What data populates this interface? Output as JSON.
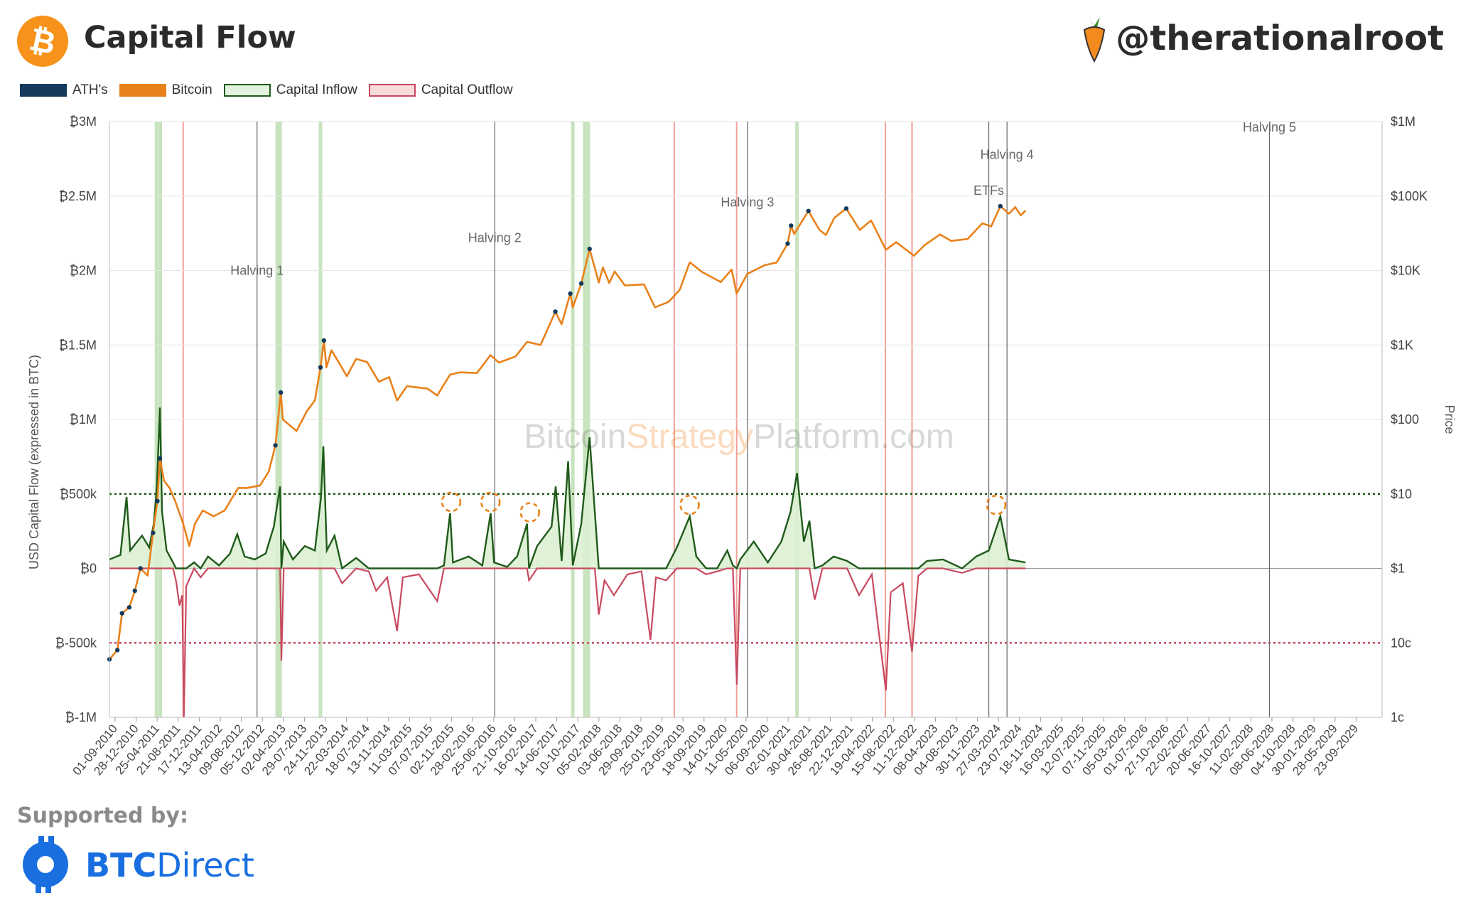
{
  "header": {
    "title": "Capital Flow",
    "handle": "@therationalroot",
    "logo_icon": "bitcoin-icon",
    "handle_icon": "carrot-icon"
  },
  "legend": [
    {
      "label": "ATH's",
      "color": "#143a5c",
      "style": "solid"
    },
    {
      "label": "Bitcoin",
      "color": "#e9811a",
      "style": "solid"
    },
    {
      "label": "Capital Inflow",
      "color": "#1f5a1a",
      "fill": "#e3f2dc",
      "style": "outline"
    },
    {
      "label": "Capital Outflow",
      "color": "#c84a60",
      "fill": "#fadbdc",
      "style": "outline"
    }
  ],
  "watermark": {
    "part1": "Bitcoin",
    "part2": "Strategy",
    "part3": "Platform.com"
  },
  "footer": {
    "supported_label": "Supported by:",
    "sponsor_bold": "BTC",
    "sponsor_rest": "Direct",
    "sponsor_icon": "btcdirect-logo-icon"
  },
  "chart_data": {
    "type": "line",
    "ylabel_left": "USD Capital Flow (expressed in BTC)",
    "ylabel_right": "Price",
    "y_left_ticks": [
      "₿3M",
      "₿2.5M",
      "₿2M",
      "₿1.5M",
      "₿1M",
      "₿500k",
      "₿0",
      "₿-500k",
      "₿-1M"
    ],
    "y_left_range": [
      -1000000,
      3000000
    ],
    "y_right_ticks": [
      "$1M",
      "$100K",
      "$10K",
      "$1K",
      "$100",
      "$10",
      "$1",
      "10c",
      "1c"
    ],
    "y_right_range_log": [
      0.01,
      1000000
    ],
    "x_range": [
      "2010-09-01",
      "2029-12-31"
    ],
    "x_ticks": [
      "01-09-2010",
      "28-12-2010",
      "25-04-2011",
      "21-08-2011",
      "17-12-2011",
      "13-04-2012",
      "09-08-2012",
      "05-12-2012",
      "02-04-2013",
      "29-07-2013",
      "24-11-2013",
      "22-03-2014",
      "18-07-2014",
      "13-11-2014",
      "11-03-2015",
      "07-07-2015",
      "02-11-2015",
      "28-02-2016",
      "25-06-2016",
      "21-10-2016",
      "16-02-2017",
      "14-06-2017",
      "10-10-2017",
      "05-02-2018",
      "03-06-2018",
      "29-09-2018",
      "25-01-2019",
      "23-05-2019",
      "18-09-2019",
      "14-01-2020",
      "11-05-2020",
      "06-09-2020",
      "02-01-2021",
      "30-04-2021",
      "26-08-2021",
      "22-12-2021",
      "19-04-2022",
      "15-08-2022",
      "11-12-2022",
      "08-04-2023",
      "04-08-2023",
      "30-11-2023",
      "27-03-2024",
      "23-07-2024",
      "18-11-2024",
      "16-03-2025",
      "12-07-2025",
      "07-11-2025",
      "05-03-2026",
      "01-07-2026",
      "27-10-2026",
      "22-02-2027",
      "20-06-2027",
      "16-10-2027",
      "11-02-2028",
      "08-06-2028",
      "04-10-2028",
      "30-01-2029",
      "28-05-2029",
      "23-09-2029"
    ],
    "reference_lines": [
      {
        "value": 500000,
        "color": "#1f5a1a",
        "style": "dotted"
      },
      {
        "value": -500000,
        "color": "#c84a60",
        "style": "dotted"
      }
    ],
    "events": [
      {
        "label": "Halving 1",
        "date": "2012-11-28"
      },
      {
        "label": "Halving 2",
        "date": "2016-07-09"
      },
      {
        "label": "Halving 3",
        "date": "2020-05-11"
      },
      {
        "label": "ETFs",
        "date": "2024-01-10"
      },
      {
        "label": "Halving 4",
        "date": "2024-04-20"
      },
      {
        "label": "Halving 5",
        "date": "2028-04-15"
      }
    ],
    "inflow_bands": [
      "2011-05-20",
      "2011-06-10",
      "2013-03-20",
      "2013-04-05",
      "2013-11-15",
      "2017-09-15",
      "2017-11-20",
      "2017-12-10",
      "2021-02-10"
    ],
    "outflow_bands": [
      "2011-10-15",
      "2019-04-01",
      "2020-03-12",
      "2022-06-15",
      "2022-11-10"
    ],
    "highlight_circles": [
      {
        "date": "2015-11-10",
        "value": 370000
      },
      {
        "date": "2016-06-15",
        "value": 370000
      },
      {
        "date": "2017-01-20",
        "value": 300000
      },
      {
        "date": "2019-06-25",
        "value": 350000
      },
      {
        "date": "2024-02-20",
        "value": 350000
      }
    ],
    "bitcoin_price": [
      {
        "date": "2010-09-01",
        "price": 0.06
      },
      {
        "date": "2010-10-15",
        "price": 0.08
      },
      {
        "date": "2010-11-10",
        "price": 0.25
      },
      {
        "date": "2010-12-20",
        "price": 0.3
      },
      {
        "date": "2011-01-20",
        "price": 0.5
      },
      {
        "date": "2011-02-20",
        "price": 1.0
      },
      {
        "date": "2011-04-01",
        "price": 0.8
      },
      {
        "date": "2011-05-01",
        "price": 3.0
      },
      {
        "date": "2011-05-25",
        "price": 8.0
      },
      {
        "date": "2011-06-08",
        "price": 30.0
      },
      {
        "date": "2011-07-01",
        "price": 15.0
      },
      {
        "date": "2011-08-01",
        "price": 12.0
      },
      {
        "date": "2011-09-01",
        "price": 8.0
      },
      {
        "date": "2011-10-15",
        "price": 4.0
      },
      {
        "date": "2011-11-18",
        "price": 2.0
      },
      {
        "date": "2011-12-20",
        "price": 4.0
      },
      {
        "date": "2012-02-01",
        "price": 6.0
      },
      {
        "date": "2012-04-01",
        "price": 5.0
      },
      {
        "date": "2012-06-01",
        "price": 6.0
      },
      {
        "date": "2012-08-15",
        "price": 12.0
      },
      {
        "date": "2012-10-01",
        "price": 12.0
      },
      {
        "date": "2012-12-15",
        "price": 13.0
      },
      {
        "date": "2013-02-01",
        "price": 20.0
      },
      {
        "date": "2013-03-10",
        "price": 45.0
      },
      {
        "date": "2013-04-09",
        "price": 230.0
      },
      {
        "date": "2013-04-20",
        "price": 100.0
      },
      {
        "date": "2013-07-05",
        "price": 70.0
      },
      {
        "date": "2013-09-01",
        "price": 130.0
      },
      {
        "date": "2013-10-15",
        "price": 180.0
      },
      {
        "date": "2013-11-15",
        "price": 500.0
      },
      {
        "date": "2013-12-04",
        "price": 1150.0
      },
      {
        "date": "2013-12-18",
        "price": 500.0
      },
      {
        "date": "2014-01-15",
        "price": 850.0
      },
      {
        "date": "2014-03-01",
        "price": 560.0
      },
      {
        "date": "2014-04-10",
        "price": 380.0
      },
      {
        "date": "2014-06-01",
        "price": 650.0
      },
      {
        "date": "2014-08-01",
        "price": 590.0
      },
      {
        "date": "2014-10-05",
        "price": 320.0
      },
      {
        "date": "2014-12-01",
        "price": 370.0
      },
      {
        "date": "2015-01-14",
        "price": 180.0
      },
      {
        "date": "2015-03-10",
        "price": 280.0
      },
      {
        "date": "2015-07-01",
        "price": 260.0
      },
      {
        "date": "2015-08-25",
        "price": 210.0
      },
      {
        "date": "2015-11-04",
        "price": 400.0
      },
      {
        "date": "2016-01-01",
        "price": 430.0
      },
      {
        "date": "2016-04-01",
        "price": 420.0
      },
      {
        "date": "2016-06-15",
        "price": 730.0
      },
      {
        "date": "2016-08-01",
        "price": 580.0
      },
      {
        "date": "2016-11-01",
        "price": 700.0
      },
      {
        "date": "2017-01-04",
        "price": 1100.0
      },
      {
        "date": "2017-03-20",
        "price": 1000.0
      },
      {
        "date": "2017-06-10",
        "price": 2800.0
      },
      {
        "date": "2017-07-15",
        "price": 1900.0
      },
      {
        "date": "2017-09-01",
        "price": 4900.0
      },
      {
        "date": "2017-09-15",
        "price": 3200.0
      },
      {
        "date": "2017-11-01",
        "price": 6700.0
      },
      {
        "date": "2017-12-17",
        "price": 19500.0
      },
      {
        "date": "2018-02-06",
        "price": 6900.0
      },
      {
        "date": "2018-03-01",
        "price": 11000.0
      },
      {
        "date": "2018-04-05",
        "price": 6800.0
      },
      {
        "date": "2018-05-05",
        "price": 9700.0
      },
      {
        "date": "2018-07-01",
        "price": 6300.0
      },
      {
        "date": "2018-10-15",
        "price": 6500.0
      },
      {
        "date": "2018-12-15",
        "price": 3200.0
      },
      {
        "date": "2019-03-01",
        "price": 3800.0
      },
      {
        "date": "2019-05-01",
        "price": 5500.0
      },
      {
        "date": "2019-06-26",
        "price": 12900.0
      },
      {
        "date": "2019-09-01",
        "price": 9600.0
      },
      {
        "date": "2019-12-15",
        "price": 7000.0
      },
      {
        "date": "2020-02-13",
        "price": 10300.0
      },
      {
        "date": "2020-03-12",
        "price": 4900.0
      },
      {
        "date": "2020-05-10",
        "price": 9000.0
      },
      {
        "date": "2020-08-15",
        "price": 11800.0
      },
      {
        "date": "2020-10-20",
        "price": 12800.0
      },
      {
        "date": "2020-12-20",
        "price": 23000.0
      },
      {
        "date": "2021-01-08",
        "price": 40000.0
      },
      {
        "date": "2021-01-25",
        "price": 31000.0
      },
      {
        "date": "2021-04-14",
        "price": 63000.0
      },
      {
        "date": "2021-06-15",
        "price": 35000.0
      },
      {
        "date": "2021-07-20",
        "price": 30000.0
      },
      {
        "date": "2021-09-05",
        "price": 51000.0
      },
      {
        "date": "2021-11-10",
        "price": 68000.0
      },
      {
        "date": "2022-01-24",
        "price": 35000.0
      },
      {
        "date": "2022-03-28",
        "price": 47000.0
      },
      {
        "date": "2022-06-18",
        "price": 19000.0
      },
      {
        "date": "2022-08-14",
        "price": 24000.0
      },
      {
        "date": "2022-11-21",
        "price": 15800.0
      },
      {
        "date": "2023-01-20",
        "price": 22000.0
      },
      {
        "date": "2023-04-14",
        "price": 30500.0
      },
      {
        "date": "2023-06-15",
        "price": 25000.0
      },
      {
        "date": "2023-09-15",
        "price": 26500.0
      },
      {
        "date": "2023-12-05",
        "price": 43000.0
      },
      {
        "date": "2024-01-23",
        "price": 39000.0
      },
      {
        "date": "2024-03-14",
        "price": 73000.0
      },
      {
        "date": "2024-05-01",
        "price": 58000.0
      },
      {
        "date": "2024-06-05",
        "price": 71000.0
      },
      {
        "date": "2024-07-05",
        "price": 55000.0
      },
      {
        "date": "2024-08-01",
        "price": 64000.0
      }
    ],
    "capital_flow": [
      {
        "date": "2010-09-01",
        "value": 60000
      },
      {
        "date": "2010-11-01",
        "value": 90000
      },
      {
        "date": "2010-12-05",
        "value": 480000
      },
      {
        "date": "2010-12-25",
        "value": 120000
      },
      {
        "date": "2011-03-01",
        "value": 220000
      },
      {
        "date": "2011-04-10",
        "value": 140000
      },
      {
        "date": "2011-05-05",
        "value": 300000
      },
      {
        "date": "2011-05-22",
        "value": 550000
      },
      {
        "date": "2011-06-08",
        "value": 1080000
      },
      {
        "date": "2011-06-20",
        "value": 380000
      },
      {
        "date": "2011-07-15",
        "value": 120000
      },
      {
        "date": "2011-08-20",
        "value": 40000
      },
      {
        "date": "2011-09-05",
        "value": -80000
      },
      {
        "date": "2011-09-25",
        "value": -250000
      },
      {
        "date": "2011-10-10",
        "value": -180000
      },
      {
        "date": "2011-10-19",
        "value": -1000000
      },
      {
        "date": "2011-11-01",
        "value": -120000
      },
      {
        "date": "2011-12-15",
        "value": 40000
      },
      {
        "date": "2012-01-20",
        "value": -60000
      },
      {
        "date": "2012-03-01",
        "value": 80000
      },
      {
        "date": "2012-05-01",
        "value": 20000
      },
      {
        "date": "2012-07-01",
        "value": 100000
      },
      {
        "date": "2012-08-10",
        "value": 230000
      },
      {
        "date": "2012-09-20",
        "value": 80000
      },
      {
        "date": "2012-11-15",
        "value": 60000
      },
      {
        "date": "2013-01-15",
        "value": 100000
      },
      {
        "date": "2013-03-01",
        "value": 280000
      },
      {
        "date": "2013-04-05",
        "value": 550000
      },
      {
        "date": "2013-04-12",
        "value": -620000
      },
      {
        "date": "2013-04-25",
        "value": 180000
      },
      {
        "date": "2013-06-15",
        "value": 60000
      },
      {
        "date": "2013-08-20",
        "value": 150000
      },
      {
        "date": "2013-10-15",
        "value": 120000
      },
      {
        "date": "2013-11-18",
        "value": 480000
      },
      {
        "date": "2013-12-01",
        "value": 820000
      },
      {
        "date": "2013-12-20",
        "value": 120000
      },
      {
        "date": "2014-02-01",
        "value": 220000
      },
      {
        "date": "2014-03-15",
        "value": -100000
      },
      {
        "date": "2014-06-01",
        "value": 70000
      },
      {
        "date": "2014-08-10",
        "value": -20000
      },
      {
        "date": "2014-09-20",
        "value": -150000
      },
      {
        "date": "2014-11-20",
        "value": -60000
      },
      {
        "date": "2015-01-14",
        "value": -420000
      },
      {
        "date": "2015-02-15",
        "value": -60000
      },
      {
        "date": "2015-05-15",
        "value": -40000
      },
      {
        "date": "2015-08-25",
        "value": -220000
      },
      {
        "date": "2015-10-01",
        "value": 20000
      },
      {
        "date": "2015-11-04",
        "value": 370000
      },
      {
        "date": "2015-11-20",
        "value": 40000
      },
      {
        "date": "2016-02-15",
        "value": 80000
      },
      {
        "date": "2016-05-01",
        "value": 20000
      },
      {
        "date": "2016-06-16",
        "value": 370000
      },
      {
        "date": "2016-07-05",
        "value": 40000
      },
      {
        "date": "2016-09-15",
        "value": 10000
      },
      {
        "date": "2016-11-10",
        "value": 80000
      },
      {
        "date": "2017-01-04",
        "value": 300000
      },
      {
        "date": "2017-01-15",
        "value": -80000
      },
      {
        "date": "2017-03-01",
        "value": 150000
      },
      {
        "date": "2017-05-20",
        "value": 280000
      },
      {
        "date": "2017-06-12",
        "value": 550000
      },
      {
        "date": "2017-07-15",
        "value": 50000
      },
      {
        "date": "2017-08-20",
        "value": 720000
      },
      {
        "date": "2017-09-15",
        "value": 20000
      },
      {
        "date": "2017-11-01",
        "value": 300000
      },
      {
        "date": "2017-12-17",
        "value": 880000
      },
      {
        "date": "2018-01-15",
        "value": 380000
      },
      {
        "date": "2018-02-06",
        "value": -310000
      },
      {
        "date": "2018-03-10",
        "value": -80000
      },
      {
        "date": "2018-05-01",
        "value": -180000
      },
      {
        "date": "2018-07-15",
        "value": -40000
      },
      {
        "date": "2018-10-01",
        "value": -20000
      },
      {
        "date": "2018-11-20",
        "value": -480000
      },
      {
        "date": "2018-12-20",
        "value": -60000
      },
      {
        "date": "2019-02-15",
        "value": -80000
      },
      {
        "date": "2019-04-15",
        "value": 140000
      },
      {
        "date": "2019-06-26",
        "value": 350000
      },
      {
        "date": "2019-08-01",
        "value": 80000
      },
      {
        "date": "2019-09-25",
        "value": -40000
      },
      {
        "date": "2019-11-25",
        "value": -20000
      },
      {
        "date": "2020-01-20",
        "value": 120000
      },
      {
        "date": "2020-02-20",
        "value": 20000
      },
      {
        "date": "2020-03-13",
        "value": -780000
      },
      {
        "date": "2020-04-01",
        "value": 60000
      },
      {
        "date": "2020-06-15",
        "value": 180000
      },
      {
        "date": "2020-09-01",
        "value": 40000
      },
      {
        "date": "2020-11-15",
        "value": 180000
      },
      {
        "date": "2021-01-05",
        "value": 380000
      },
      {
        "date": "2021-02-10",
        "value": 640000
      },
      {
        "date": "2021-03-20",
        "value": 180000
      },
      {
        "date": "2021-04-20",
        "value": 320000
      },
      {
        "date": "2021-05-19",
        "value": -210000
      },
      {
        "date": "2021-07-01",
        "value": 20000
      },
      {
        "date": "2021-09-01",
        "value": 80000
      },
      {
        "date": "2021-11-15",
        "value": 50000
      },
      {
        "date": "2022-01-20",
        "value": -180000
      },
      {
        "date": "2022-04-01",
        "value": -40000
      },
      {
        "date": "2022-06-18",
        "value": -820000
      },
      {
        "date": "2022-07-15",
        "value": -160000
      },
      {
        "date": "2022-09-20",
        "value": -100000
      },
      {
        "date": "2022-11-10",
        "value": -560000
      },
      {
        "date": "2022-12-15",
        "value": -50000
      },
      {
        "date": "2023-02-01",
        "value": 50000
      },
      {
        "date": "2023-05-01",
        "value": 60000
      },
      {
        "date": "2023-08-15",
        "value": -30000
      },
      {
        "date": "2023-11-01",
        "value": 80000
      },
      {
        "date": "2024-01-10",
        "value": 120000
      },
      {
        "date": "2024-03-14",
        "value": 350000
      },
      {
        "date": "2024-05-01",
        "value": 60000
      },
      {
        "date": "2024-08-01",
        "value": 40000
      }
    ]
  }
}
